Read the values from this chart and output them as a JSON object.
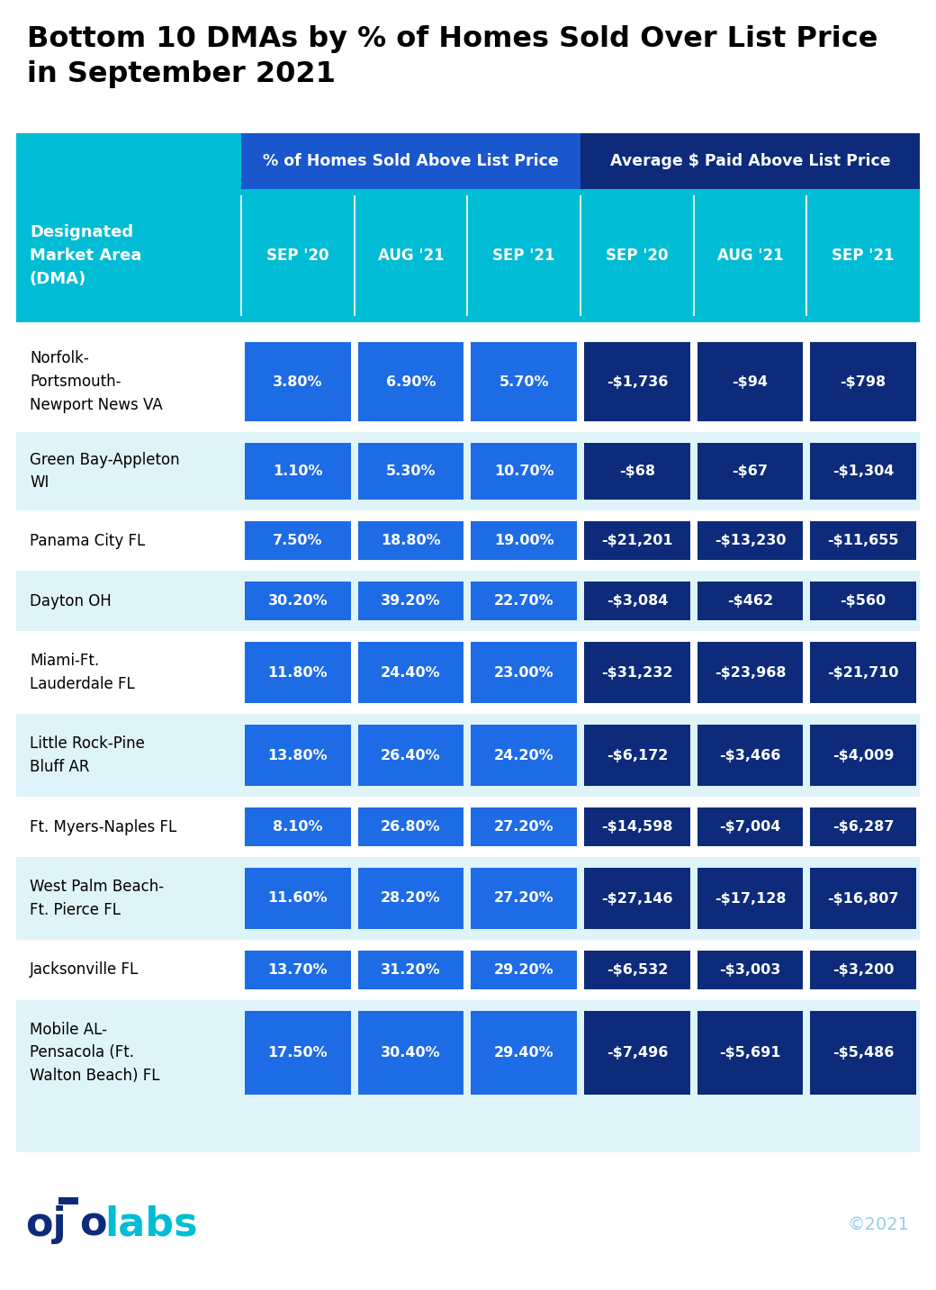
{
  "title_line1": "Bottom 10 DMAs by % of Homes Sold Over List Price",
  "title_line2": "in September 2021",
  "header_col1": "Designated\nMarket Area\n(DMA)",
  "header_group1": "% of Homes Sold Above List Price",
  "header_group2": "Average $ Paid Above List Price",
  "sub_headers": [
    "SEP '20",
    "AUG '21",
    "SEP '21",
    "SEP '20",
    "AUG '21",
    "SEP '21"
  ],
  "rows": [
    {
      "name": "Norfolk-\nPortsmouth-\nNewport News VA",
      "values": [
        "3.80%",
        "6.90%",
        "5.70%",
        "-$1,736",
        "-$94",
        "-$798"
      ],
      "lines": 3
    },
    {
      "name": "Green Bay-Appleton\nWI",
      "values": [
        "1.10%",
        "5.30%",
        "10.70%",
        "-$68",
        "-$67",
        "-$1,304"
      ],
      "lines": 2
    },
    {
      "name": "Panama City FL",
      "values": [
        "7.50%",
        "18.80%",
        "19.00%",
        "-$21,201",
        "-$13,230",
        "-$11,655"
      ],
      "lines": 1
    },
    {
      "name": "Dayton OH",
      "values": [
        "30.20%",
        "39.20%",
        "22.70%",
        "-$3,084",
        "-$462",
        "-$560"
      ],
      "lines": 1
    },
    {
      "name": "Miami-Ft.\nLauderdale FL",
      "values": [
        "11.80%",
        "24.40%",
        "23.00%",
        "-$31,232",
        "-$23,968",
        "-$21,710"
      ],
      "lines": 2
    },
    {
      "name": "Little Rock-Pine\nBluff AR",
      "values": [
        "13.80%",
        "26.40%",
        "24.20%",
        "-$6,172",
        "-$3,466",
        "-$4,009"
      ],
      "lines": 2
    },
    {
      "name": "Ft. Myers-Naples FL",
      "values": [
        "8.10%",
        "26.80%",
        "27.20%",
        "-$14,598",
        "-$7,004",
        "-$6,287"
      ],
      "lines": 1
    },
    {
      "name": "West Palm Beach-\nFt. Pierce FL",
      "values": [
        "11.60%",
        "28.20%",
        "27.20%",
        "-$27,146",
        "-$17,128",
        "-$16,807"
      ],
      "lines": 2
    },
    {
      "name": "Jacksonville FL",
      "values": [
        "13.70%",
        "31.20%",
        "29.20%",
        "-$6,532",
        "-$3,003",
        "-$3,200"
      ],
      "lines": 1
    },
    {
      "name": "Mobile AL-\nPensacola (Ft.\nWalton Beach) FL",
      "values": [
        "17.50%",
        "30.40%",
        "29.40%",
        "-$7,496",
        "-$5,691",
        "-$5,486"
      ],
      "lines": 3
    }
  ],
  "bg_color": "#ffffff",
  "title_color": "#000000",
  "header_bg": "#00bcd4",
  "header_group1_bg": "#1a56cc",
  "header_group2_bg": "#0d2b7a",
  "cell_group1_bg": "#1e6be6",
  "cell_group2_bg": "#0d2b7a",
  "header_text_color": "#ffffff",
  "cell_text_color": "#ffffff",
  "row_bg_odd": "#ffffff",
  "row_bg_even": "#dff4f9",
  "dma_text_color": "#000000",
  "footer_bg": "#dff4f9",
  "ojo_cyan": "#00bcd4",
  "ojo_navy": "#0d2b7a",
  "copyright_color": "#99cce8"
}
